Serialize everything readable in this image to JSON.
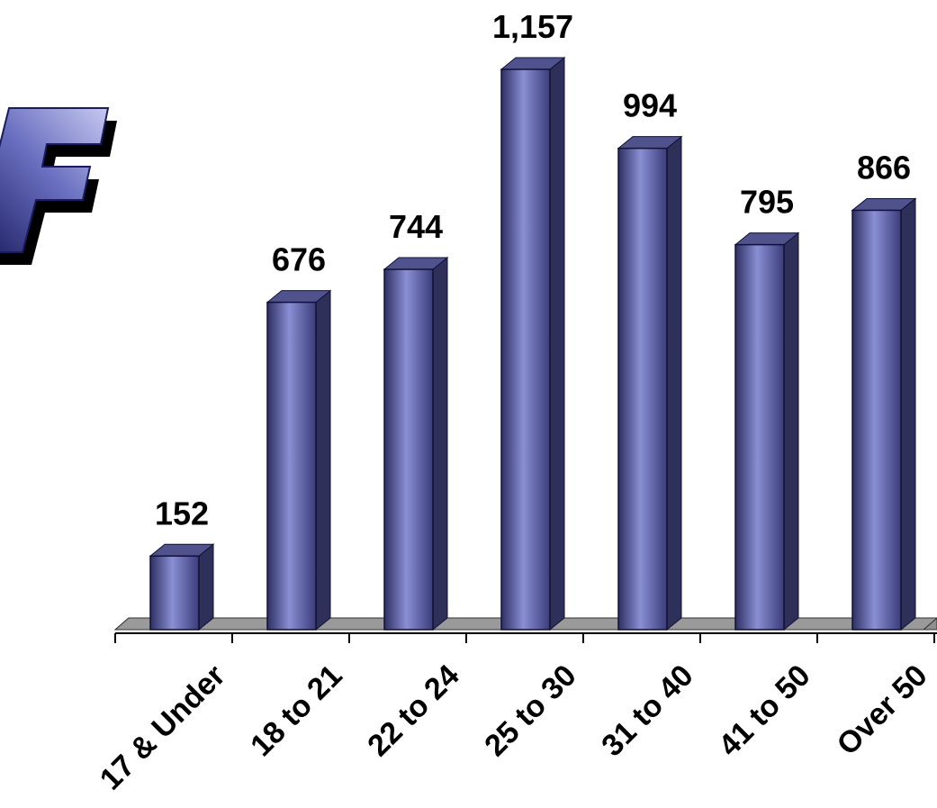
{
  "chart_data": {
    "type": "bar",
    "style": "3d-column",
    "categories": [
      "17 & Under",
      "18 to 21",
      "22 to 24",
      "25 to 30",
      "31 to 40",
      "41 to 50",
      "Over 50"
    ],
    "values": [
      152,
      676,
      744,
      1157,
      994,
      795,
      866
    ],
    "value_labels": [
      "152",
      "676",
      "744",
      "1,157",
      "994",
      "795",
      "866"
    ],
    "title": "",
    "xlabel": "",
    "ylabel": "",
    "ylim": [
      0,
      1157
    ],
    "grid": false,
    "legend": "none",
    "colors": {
      "bar_front": "#5b5fad",
      "bar_highlight": "#8a8fd4",
      "bar_dark": "#2e2f63",
      "bar_side": "#2f3059",
      "bar_top": "#4f528c",
      "floor": "#8f8f8f",
      "logo_front": "#23247a",
      "logo_shadow": "#000000"
    }
  },
  "logo": {
    "glyph": "F",
    "icon": "f-logo-icon"
  }
}
